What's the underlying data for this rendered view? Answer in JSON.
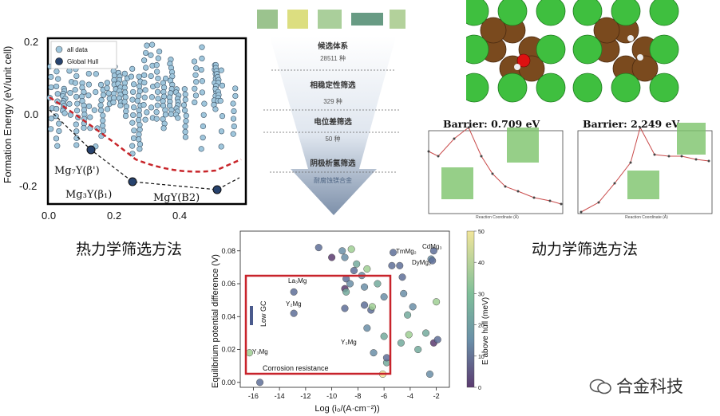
{
  "left_panel": {
    "ylabel": "Formation Energy (eV/unit cell)",
    "xticks": [
      "0.0",
      "0.2",
      "0.4"
    ],
    "yticks": [
      "0.2",
      "0.0",
      "-0.2"
    ],
    "legend": [
      "all data",
      "Global Hull"
    ],
    "annotations": [
      "Mg₇Y(β')",
      "Mg₃Y(β₁)",
      "MgY(B2)"
    ]
  },
  "funnel": {
    "stages": [
      {
        "title": "候选体系",
        "count": "28511 种"
      },
      {
        "title": "相稳定性筛选",
        "count": "329 种"
      },
      {
        "title": "电位差筛选",
        "count": "50 种"
      },
      {
        "title": "阴极析氢筛选",
        "count": "耐腐蚀镁合金"
      }
    ]
  },
  "captions": {
    "left": "热力学筛选方法",
    "right": "动力学筛选方法"
  },
  "barrier_panels": [
    {
      "title": "Barrier: 0.709 eV",
      "xlabel": "Reaction Coordinate (Å)",
      "ylabel": "Energy (eV)"
    },
    {
      "title": "Barrier: 2.249 eV",
      "xlabel": "Reaction Coordinate (Å)",
      "ylabel": "Energy (eV)"
    }
  ],
  "bottom_chart": {
    "ylabel": "Equilibrium potential difference (V)",
    "xlabel": "Log (i₀/(A·cm⁻²))",
    "colorbar_label": "E above hull (meV)",
    "xticks": [
      "-16",
      "-14",
      "-12",
      "-10",
      "-8",
      "-6",
      "-4",
      "-2"
    ],
    "yticks": [
      "0.00",
      "0.02",
      "0.04",
      "0.06",
      "0.08"
    ],
    "cticks": [
      "0",
      "10",
      "20",
      "30",
      "40",
      "50"
    ],
    "labels": {
      "la": "La₃Mg",
      "y2": "Y₂Mg",
      "y3a": "Y₃Mg",
      "y3b": "Y₃Mg",
      "tm": "TmMg₂",
      "cd": "CdMg₃",
      "dy": "DyMg₂",
      "lowgc": "Low GC",
      "corr": "Corrosion resistance"
    }
  },
  "chart_data": {
    "type": "scatter",
    "xlabel": "Log (i₀/(A·cm⁻²))",
    "ylabel": "Equilibrium potential difference (V)",
    "xlim": [
      -17,
      -1
    ],
    "ylim": [
      -0.003,
      0.092
    ],
    "points": [
      {
        "x": -16.3,
        "y": 0.018,
        "c": 38
      },
      {
        "x": -15.5,
        "y": 0.0,
        "c": 5
      },
      {
        "x": -12.9,
        "y": 0.055,
        "c": 12
      },
      {
        "x": -12.9,
        "y": 0.042,
        "c": 10
      },
      {
        "x": -9.2,
        "y": 0.08,
        "c": 22
      },
      {
        "x": -9.0,
        "y": 0.076,
        "c": 15
      },
      {
        "x": -8.9,
        "y": 0.063,
        "c": 8
      },
      {
        "x": -9.0,
        "y": 0.057,
        "c": 4
      },
      {
        "x": -8.9,
        "y": 0.055,
        "c": 28
      },
      {
        "x": -9.0,
        "y": 0.045,
        "c": 12
      },
      {
        "x": -8.1,
        "y": 0.072,
        "c": 30
      },
      {
        "x": -8.3,
        "y": 0.068,
        "c": 9
      },
      {
        "x": -7.7,
        "y": 0.065,
        "c": 24
      },
      {
        "x": -7.3,
        "y": 0.069,
        "c": 40
      },
      {
        "x": -7.5,
        "y": 0.058,
        "c": 16
      },
      {
        "x": -7.5,
        "y": 0.047,
        "c": 13
      },
      {
        "x": -7.0,
        "y": 0.044,
        "c": 11
      },
      {
        "x": -6.9,
        "y": 0.046,
        "c": 42
      },
      {
        "x": -6.5,
        "y": 0.06,
        "c": 27
      },
      {
        "x": -6.0,
        "y": 0.052,
        "c": 18
      },
      {
        "x": -7.3,
        "y": 0.033,
        "c": 20
      },
      {
        "x": -6.0,
        "y": 0.028,
        "c": 26
      },
      {
        "x": -5.8,
        "y": 0.012,
        "c": 30
      },
      {
        "x": -6.8,
        "y": 0.018,
        "c": 24
      },
      {
        "x": -6.1,
        "y": 0.005,
        "c": 48
      },
      {
        "x": -5.8,
        "y": 0.015,
        "c": 6
      },
      {
        "x": -5.3,
        "y": 0.079,
        "c": 14
      },
      {
        "x": -5.4,
        "y": 0.071,
        "c": 5
      },
      {
        "x": -4.8,
        "y": 0.071,
        "c": 10
      },
      {
        "x": -4.6,
        "y": 0.064,
        "c": 8
      },
      {
        "x": -4.5,
        "y": 0.054,
        "c": 20
      },
      {
        "x": -4.2,
        "y": 0.041,
        "c": 30
      },
      {
        "x": -3.8,
        "y": 0.046,
        "c": 22
      },
      {
        "x": -4.1,
        "y": 0.029,
        "c": 35
      },
      {
        "x": -4.7,
        "y": 0.024,
        "c": 26
      },
      {
        "x": -3.4,
        "y": 0.02,
        "c": 32
      },
      {
        "x": -2.4,
        "y": 0.075,
        "c": 15
      },
      {
        "x": -2.3,
        "y": 0.074,
        "c": 8
      },
      {
        "x": -2.2,
        "y": 0.08,
        "c": 6
      },
      {
        "x": -2.8,
        "y": 0.03,
        "c": 30
      },
      {
        "x": -2.2,
        "y": 0.024,
        "c": 3
      },
      {
        "x": -1.9,
        "y": 0.026,
        "c": 12
      },
      {
        "x": -2.5,
        "y": 0.005,
        "c": 18
      },
      {
        "x": -2.0,
        "y": 0.049,
        "c": 40
      },
      {
        "x": -8.5,
        "y": 0.081,
        "c": 35
      },
      {
        "x": -10.0,
        "y": 0.076,
        "c": 2
      },
      {
        "x": -11.0,
        "y": 0.082,
        "c": 6
      },
      {
        "x": -8.6,
        "y": 0.06,
        "c": 20
      }
    ]
  }
}
